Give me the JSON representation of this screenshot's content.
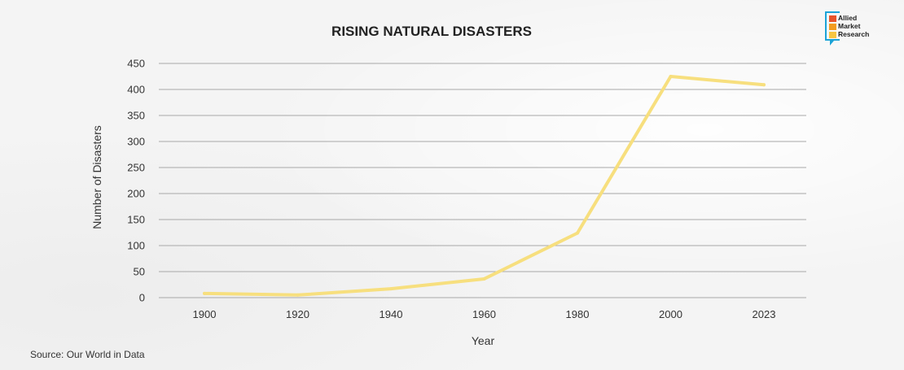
{
  "chart_data": {
    "type": "line",
    "title": "RISING NATURAL DISASTERS",
    "xlabel": "Year",
    "ylabel": "Number of Disasters",
    "categories": [
      "1900",
      "1920",
      "1940",
      "1960",
      "1980",
      "2000",
      "2023"
    ],
    "series": [
      {
        "name": "Number of Disasters",
        "values": [
          8,
          5,
          17,
          36,
          124,
          425,
          409
        ],
        "color": "#f7df7e"
      }
    ],
    "ylim": [
      0,
      450
    ],
    "yticks": [
      0,
      50,
      100,
      150,
      200,
      250,
      300,
      350,
      400,
      450
    ],
    "grid": true,
    "legend": "none"
  },
  "source": "Source: Our World in Data",
  "logo": {
    "lines": [
      "Allied",
      "Market",
      "Research"
    ],
    "colors": [
      "#e8532a",
      "#f39c1f",
      "#f6c542"
    ],
    "frame_color": "#1ba3d8"
  }
}
